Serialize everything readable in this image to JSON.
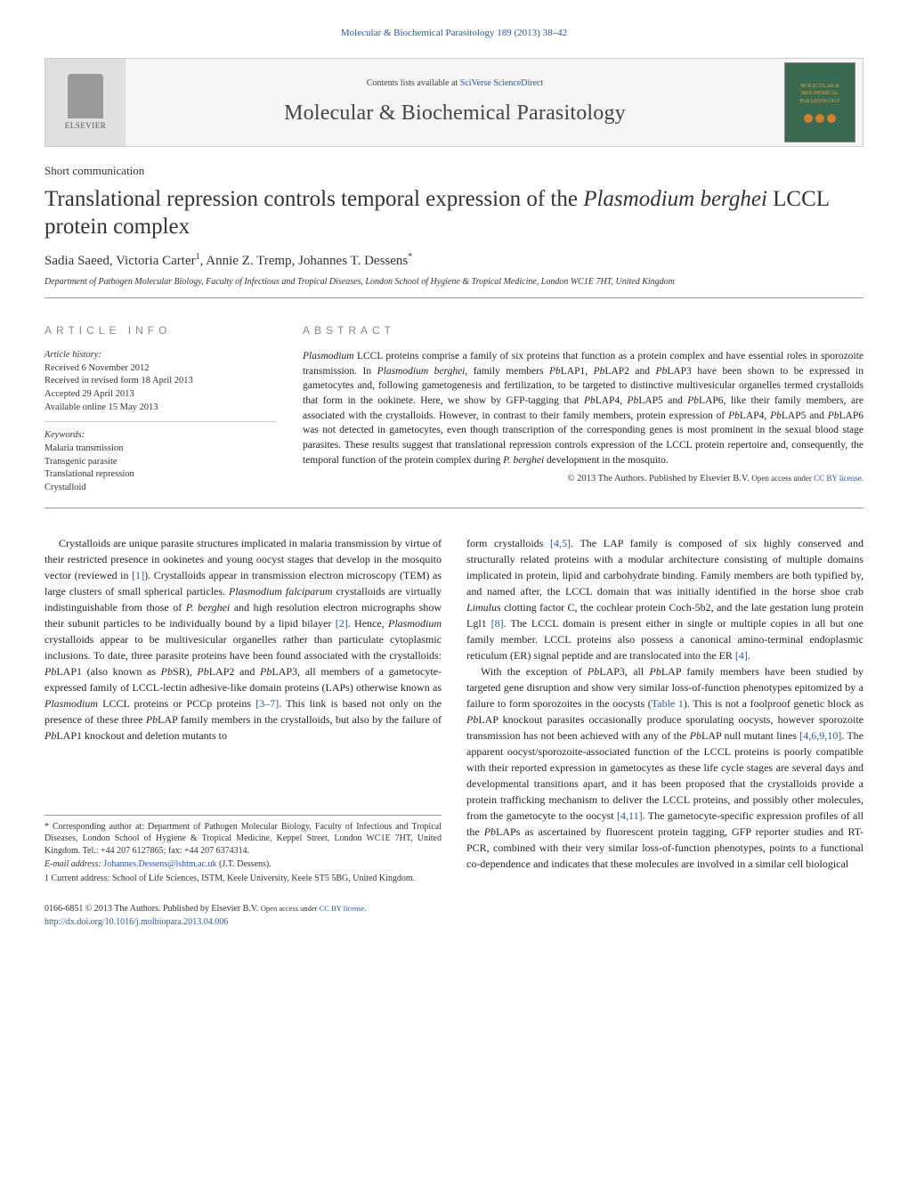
{
  "header_ref": "Molecular & Biochemical Parasitology 189 (2013) 38–42",
  "banner": {
    "contents_prefix": "Contents lists available at ",
    "contents_link": "SciVerse ScienceDirect",
    "journal": "Molecular & Biochemical Parasitology",
    "publisher": "ELSEVIER",
    "cover_text_top": "MOLECULAR & BIOCHEMICAL",
    "cover_text_bottom": "PARASITOLOGY"
  },
  "article_type": "Short communication",
  "title_pre": "Translational repression controls temporal expression of the ",
  "title_em": "Plasmodium berghei",
  "title_post": " LCCL protein complex",
  "authors": {
    "a1": "Sadia Saeed",
    "a2": "Victoria Carter",
    "a2_sup": "1",
    "a3": "Annie Z. Tremp",
    "a4": "Johannes T. Dessens",
    "a4_sup": "*"
  },
  "affiliation": "Department of Pathogen Molecular Biology, Faculty of Infectious and Tropical Diseases, London School of Hygiene & Tropical Medicine, London WC1E 7HT, United Kingdom",
  "info_heading": "article info",
  "history_label": "Article history:",
  "history": {
    "received": "Received 6 November 2012",
    "revised": "Received in revised form 18 April 2013",
    "accepted": "Accepted 29 April 2013",
    "online": "Available online 15 May 2013"
  },
  "keywords_label": "Keywords:",
  "keywords": {
    "k1": "Malaria transmission",
    "k2": "Transgenic parasite",
    "k3": "Translational repression",
    "k4": "Crystalloid"
  },
  "abstract_heading": "abstract",
  "abstract": {
    "p1a": "Plasmodium",
    "p1b": " LCCL proteins comprise a family of six proteins that function as a protein complex and have essential roles in sporozoite transmission. In ",
    "p1c": "Plasmodium berghei",
    "p1d": ", family members ",
    "p1e": "Pb",
    "p1f": "LAP1, ",
    "p1g": "Pb",
    "p1h": "LAP2 and ",
    "p1i": "Pb",
    "p1j": "LAP3 have been shown to be expressed in gametocytes and, following gametogenesis and fertilization, to be targeted to distinctive multivesicular organelles termed crystalloids that form in the ookinete. Here, we show by GFP-tagging that ",
    "p1k": "Pb",
    "p1l": "LAP4, ",
    "p1m": "Pb",
    "p1n": "LAP5 and ",
    "p1o": "Pb",
    "p1p": "LAP6, like their family members, are associated with the crystalloids. However, in contrast to their family members, protein expression of ",
    "p1q": "Pb",
    "p1r": "LAP4, ",
    "p1s": "Pb",
    "p1t": "LAP5 and ",
    "p1u": "Pb",
    "p1v": "LAP6 was not detected in gametocytes, even though transcription of the corresponding genes is most prominent in the sexual blood stage parasites. These results suggest that translational repression controls expression of the LCCL protein repertoire and, consequently, the temporal function of the protein complex during ",
    "p1w": "P. berghei",
    "p1x": " development in the mosquito."
  },
  "copyright": "© 2013 The Authors. Published by Elsevier B.V. ",
  "license_prefix": "Open access under ",
  "license_link": "CC BY license.",
  "body": {
    "left": {
      "p1a": "Crystalloids are unique parasite structures implicated in malaria transmission by virtue of their restricted presence in ookinetes and young oocyst stages that develop in the mosquito vector (reviewed in ",
      "p1_ref1": "[1]",
      "p1b": "). Crystalloids appear in transmission electron microscopy (TEM) as large clusters of small spherical particles. ",
      "p1c": "Plasmodium falciparum",
      "p1d": " crystalloids are virtually indistinguishable from those of ",
      "p1e": "P. berghei",
      "p1f": " and high resolution electron micrographs show their subunit particles to be individually bound by a lipid bilayer ",
      "p1_ref2": "[2]",
      "p1g": ". Hence, ",
      "p1h": "Plasmodium",
      "p1i": " crystalloids appear to be multivesicular organelles rather than particulate cytoplasmic inclusions. To date, three parasite proteins have been found associated with the crystalloids: ",
      "p1j": "Pb",
      "p1k": "LAP1 (also known as ",
      "p1l": "Pb",
      "p1m": "SR), ",
      "p1n": "Pb",
      "p1o": "LAP2 and ",
      "p1p": "Pb",
      "p1q": "LAP3, all members of a gametocyte-expressed family of LCCL-lectin adhesive-like domain proteins (LAPs) otherwise known as ",
      "p1r": "Plasmodium",
      "p1s": " LCCL proteins or PCCp proteins ",
      "p1_ref3": "[3–7]",
      "p1t": ". This link is based not only on the presence of these three ",
      "p1u": "Pb",
      "p1v": "LAP family members in the crystalloids, but also by the failure of ",
      "p1w": "Pb",
      "p1x": "LAP1 knockout and deletion mutants to"
    },
    "right": {
      "p1a": "form crystalloids ",
      "p1_ref1": "[4,5]",
      "p1b": ". The LAP family is composed of six highly conserved and structurally related proteins with a modular architecture consisting of multiple domains implicated in protein, lipid and carbohydrate binding. Family members are both typified by, and named after, the LCCL domain that was initially identified in the horse shoe crab ",
      "p1c": "Limulus",
      "p1d": " clotting factor C, the cochlear protein Coch-5b2, and the late gestation lung protein Lgl1 ",
      "p1_ref2": "[8]",
      "p1e": ". The LCCL domain is present either in single or multiple copies in all but one family member. LCCL proteins also possess a canonical amino-terminal endoplasmic reticulum (ER) signal peptide and are translocated into the ER ",
      "p1_ref3": "[4]",
      "p1f": ".",
      "p2a": "With the exception of ",
      "p2b": "Pb",
      "p2c": "LAP3, all ",
      "p2d": "Pb",
      "p2e": "LAP family members have been studied by targeted gene disruption and show very similar loss-of-function phenotypes epitomized by a failure to form sporozoites in the oocysts (",
      "p2_ref1": "Table 1",
      "p2f": "). This is not a foolproof genetic block as ",
      "p2g": "Pb",
      "p2h": "LAP knockout parasites occasionally produce sporulating oocysts, however sporozoite transmission has not been achieved with any of the ",
      "p2i": "Pb",
      "p2j": "LAP null mutant lines ",
      "p2_ref2": "[4,6,9,10]",
      "p2k": ". The apparent oocyst/sporozoite-associated function of the LCCL proteins is poorly compatible with their reported expression in gametocytes as these life cycle stages are several days and developmental transitions apart, and it has been proposed that the crystalloids provide a protein trafficking mechanism to deliver the LCCL proteins, and possibly other molecules, from the gametocyte to the oocyst ",
      "p2_ref3": "[4,11]",
      "p2l": ". The gametocyte-specific expression profiles of all the ",
      "p2m": "Pb",
      "p2n": "LAPs as ascertained by fluorescent protein tagging, GFP reporter studies and RT-PCR, combined with their very similar loss-of-function phenotypes, points to a functional co-dependence and indicates that these molecules are involved in a similar cell biological"
    }
  },
  "footnotes": {
    "corr_marker": "* ",
    "corr": "Corresponding author at: Department of Pathogen Molecular Biology, Faculty of Infectious and Tropical Diseases, London School of Hygiene & Tropical Medicine, Keppel Street, London WC1E 7HT, United Kingdom. Tel.: +44 207 6127865; fax: +44 207 6374314.",
    "email_label": "E-mail address: ",
    "email": "Johannes.Dessens@lshtm.ac.uk",
    "email_who": " (J.T. Dessens).",
    "fn1_marker": "1 ",
    "fn1": "Current address: School of Life Sciences, ISTM, Keele University, Keele ST5 5BG, United Kingdom."
  },
  "doi": {
    "line1": "0166-6851 © 2013 The Authors. Published by Elsevier B.V. ",
    "line1_link_prefix": "Open access under ",
    "line1_link": "CC BY license.",
    "line2": "http://dx.doi.org/10.1016/j.molbiopara.2013.04.006"
  },
  "colors": {
    "link": "#2858a8",
    "text": "#1a1a1a",
    "heading_gray": "#888888",
    "border": "#999999",
    "cover_bg": "#3a6a52",
    "cover_accent": "#f0a030"
  }
}
